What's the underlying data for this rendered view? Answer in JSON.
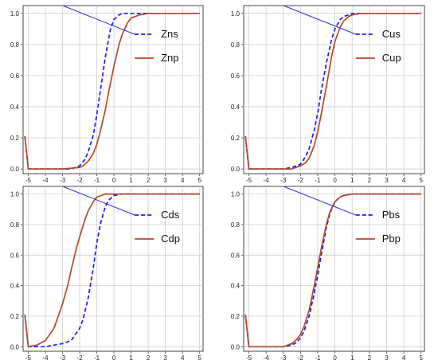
{
  "chart_data": [
    {
      "type": "line",
      "xlim": [
        -5.3,
        5.2
      ],
      "ylim": [
        -0.03,
        1.05
      ],
      "x_ticks": [
        "-5",
        "-4",
        "-3",
        "-2",
        "-1",
        "0",
        "1",
        "2",
        "3",
        "4",
        "5"
      ],
      "y_ticks": [
        "0.0",
        "0.2",
        "0.4",
        "0.6",
        "0.8",
        "1.0"
      ],
      "grid": true,
      "legend_position": "top-right",
      "series": [
        {
          "name": "Zns",
          "style": "dashed",
          "color": "#1a1aff",
          "x": [
            -5.2,
            -5.0,
            -4.0,
            -3.0,
            -2.5,
            -2.0,
            -1.7,
            -1.5,
            -1.2,
            -1.0,
            -0.8,
            -0.5,
            -0.2,
            0.0,
            0.3,
            0.5,
            1.0,
            2.0,
            3.0,
            4.0,
            5.0
          ],
          "y": [
            0.21,
            0.0,
            0.0,
            0.0,
            0.0,
            0.02,
            0.06,
            0.11,
            0.22,
            0.35,
            0.5,
            0.72,
            0.9,
            0.96,
            0.99,
            1.0,
            1.0,
            1.0,
            1.0,
            1.0,
            1.0
          ]
        },
        {
          "name": "Znp",
          "style": "solid",
          "color": "#b5472a",
          "x": [
            -5.2,
            -5.0,
            -4.0,
            -3.0,
            -2.0,
            -1.8,
            -1.5,
            -1.2,
            -1.0,
            -0.8,
            -0.5,
            -0.3,
            0.0,
            0.3,
            0.5,
            0.8,
            1.0,
            1.5,
            2.0,
            3.0,
            4.0,
            5.0
          ],
          "y": [
            0.21,
            0.0,
            0.0,
            0.0,
            0.01,
            0.02,
            0.05,
            0.1,
            0.16,
            0.24,
            0.38,
            0.5,
            0.66,
            0.8,
            0.87,
            0.94,
            0.97,
            0.99,
            1.0,
            1.0,
            1.0,
            1.0
          ]
        }
      ]
    },
    {
      "type": "line",
      "xlim": [
        -5.3,
        5.2
      ],
      "ylim": [
        -0.03,
        1.05
      ],
      "x_ticks": [
        "-5",
        "-4",
        "-3",
        "-2",
        "-1",
        "0",
        "1",
        "2",
        "3",
        "4",
        "5"
      ],
      "y_ticks": [
        "0.0",
        "0.2",
        "0.4",
        "0.6",
        "0.8",
        "1.0"
      ],
      "grid": true,
      "legend_position": "top-right",
      "series": [
        {
          "name": "Cus",
          "style": "dashed",
          "color": "#1a1aff",
          "x": [
            -5.2,
            -5.0,
            -4.0,
            -3.0,
            -2.5,
            -2.0,
            -1.7,
            -1.5,
            -1.2,
            -1.0,
            -0.8,
            -0.5,
            -0.2,
            0.0,
            0.3,
            0.5,
            0.8,
            1.0,
            2.0,
            3.0,
            4.0,
            5.0
          ],
          "y": [
            0.21,
            0.0,
            0.0,
            0.0,
            0.01,
            0.03,
            0.08,
            0.13,
            0.25,
            0.36,
            0.5,
            0.68,
            0.83,
            0.9,
            0.96,
            0.98,
            0.99,
            1.0,
            1.0,
            1.0,
            1.0,
            1.0
          ]
        },
        {
          "name": "Cup",
          "style": "solid",
          "color": "#b5472a",
          "x": [
            -5.2,
            -5.0,
            -4.0,
            -3.0,
            -2.5,
            -2.0,
            -1.7,
            -1.5,
            -1.2,
            -1.0,
            -0.8,
            -0.5,
            -0.2,
            0.0,
            0.3,
            0.5,
            0.8,
            1.0,
            1.5,
            2.0,
            3.0,
            4.0,
            5.0
          ],
          "y": [
            0.21,
            0.0,
            0.0,
            0.0,
            0.0,
            0.02,
            0.04,
            0.07,
            0.15,
            0.24,
            0.35,
            0.53,
            0.72,
            0.82,
            0.91,
            0.95,
            0.98,
            0.99,
            1.0,
            1.0,
            1.0,
            1.0,
            1.0
          ]
        }
      ]
    },
    {
      "type": "line",
      "xlim": [
        -5.3,
        5.2
      ],
      "ylim": [
        -0.03,
        1.05
      ],
      "x_ticks": [
        "-5",
        "-4",
        "-3",
        "-2",
        "-1",
        "0",
        "1",
        "2",
        "3",
        "4",
        "5"
      ],
      "y_ticks": [
        "0.0",
        "0.2",
        "0.4",
        "0.6",
        "0.8",
        "1.0"
      ],
      "grid": true,
      "legend_position": "top-right",
      "series": [
        {
          "name": "Cds",
          "style": "dashed",
          "color": "#1a1aff",
          "x": [
            -5.2,
            -5.0,
            -4.5,
            -4.0,
            -3.5,
            -3.0,
            -2.5,
            -2.0,
            -1.8,
            -1.5,
            -1.2,
            -1.0,
            -0.8,
            -0.5,
            -0.3,
            0.0,
            0.5,
            1.0,
            2.0,
            3.0,
            4.0,
            5.0
          ],
          "y": [
            0.21,
            0.0,
            0.0,
            0.0,
            0.01,
            0.02,
            0.04,
            0.12,
            0.18,
            0.32,
            0.52,
            0.68,
            0.8,
            0.92,
            0.96,
            0.99,
            1.0,
            1.0,
            1.0,
            1.0,
            1.0,
            1.0
          ]
        },
        {
          "name": "Cdp",
          "style": "solid",
          "color": "#b5472a",
          "x": [
            -5.2,
            -5.0,
            -4.5,
            -4.0,
            -3.5,
            -3.0,
            -2.7,
            -2.5,
            -2.2,
            -2.0,
            -1.7,
            -1.5,
            -1.2,
            -1.0,
            -0.5,
            0.0,
            0.5,
            1.0,
            2.0,
            3.0,
            4.0,
            5.0
          ],
          "y": [
            0.21,
            0.0,
            0.01,
            0.04,
            0.12,
            0.28,
            0.4,
            0.5,
            0.64,
            0.72,
            0.83,
            0.89,
            0.95,
            0.98,
            1.0,
            1.0,
            1.0,
            1.0,
            1.0,
            1.0,
            1.0,
            1.0
          ]
        }
      ]
    },
    {
      "type": "line",
      "xlim": [
        -5.3,
        5.2
      ],
      "ylim": [
        -0.03,
        1.05
      ],
      "x_ticks": [
        "-5",
        "-4",
        "-3",
        "-2",
        "-1",
        "0",
        "1",
        "2",
        "3",
        "4",
        "5"
      ],
      "y_ticks": [
        "0.0",
        "0.2",
        "0.4",
        "0.6",
        "0.8",
        "1.0"
      ],
      "grid": true,
      "legend_position": "top-right",
      "series": [
        {
          "name": "Pbs",
          "style": "dashed",
          "color": "#1a1aff",
          "x": [
            -5.2,
            -5.0,
            -4.0,
            -3.0,
            -2.5,
            -2.2,
            -2.0,
            -1.8,
            -1.5,
            -1.2,
            -1.0,
            -0.8,
            -0.5,
            -0.3,
            0.0,
            0.3,
            0.5,
            1.0,
            2.0,
            3.0,
            4.0,
            5.0
          ],
          "y": [
            0.21,
            0.0,
            0.0,
            0.0,
            0.01,
            0.03,
            0.06,
            0.1,
            0.2,
            0.35,
            0.47,
            0.6,
            0.78,
            0.87,
            0.95,
            0.98,
            0.99,
            1.0,
            1.0,
            1.0,
            1.0,
            1.0
          ]
        },
        {
          "name": "Pbp",
          "style": "solid",
          "color": "#b5472a",
          "x": [
            -5.2,
            -5.0,
            -4.0,
            -3.0,
            -2.5,
            -2.2,
            -2.0,
            -1.8,
            -1.5,
            -1.2,
            -1.0,
            -0.8,
            -0.5,
            -0.3,
            0.0,
            0.3,
            0.5,
            1.0,
            2.0,
            3.0,
            4.0,
            5.0
          ],
          "y": [
            0.21,
            0.0,
            0.0,
            0.0,
            0.02,
            0.05,
            0.08,
            0.13,
            0.24,
            0.4,
            0.52,
            0.64,
            0.8,
            0.88,
            0.95,
            0.98,
            0.99,
            1.0,
            1.0,
            1.0,
            1.0,
            1.0
          ]
        }
      ]
    }
  ]
}
